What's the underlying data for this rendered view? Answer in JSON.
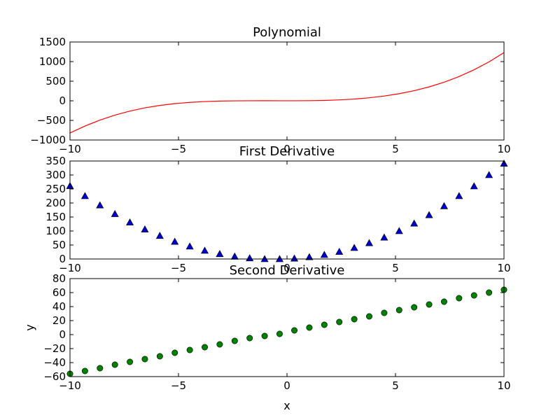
{
  "chart_data": [
    {
      "type": "line",
      "title": "Polynomial",
      "xlabel": "",
      "ylabel": "",
      "xlim": [
        -10,
        10
      ],
      "ylim": [
        -1000,
        1500
      ],
      "xticks": [
        -10,
        -5,
        0,
        5,
        10
      ],
      "yticks": [
        -1000,
        -500,
        0,
        500,
        1000,
        1500
      ],
      "xtick_labels": [
        "−10",
        "−5",
        "0",
        "5",
        "10"
      ],
      "ytick_labels": [
        "−1000",
        "−500",
        "0",
        "500",
        "1000",
        "1500"
      ],
      "grid": false,
      "series": [
        {
          "color": "#ff0000",
          "marker": "none",
          "x": [
            -10,
            -9.31,
            -8.62,
            -7.93,
            -7.24,
            -6.55,
            -5.86,
            -5.17,
            -4.48,
            -3.79,
            -3.1,
            -2.41,
            -1.72,
            -1.03,
            -0.34,
            0.34,
            1.03,
            1.72,
            2.41,
            3.1,
            3.79,
            4.48,
            5.17,
            5.86,
            6.55,
            7.24,
            7.93,
            8.62,
            9.31,
            10
          ],
          "y": [
            -820,
            -644,
            -492,
            -365,
            -262,
            -180,
            -118,
            -72,
            -40,
            -19,
            -7,
            -1,
            1,
            2,
            1,
            1,
            3,
            9,
            23,
            44,
            77,
            122,
            181,
            258,
            355,
            474,
            619,
            791,
            993,
            1230
          ]
        }
      ]
    },
    {
      "type": "scatter",
      "title": "First Derivative",
      "xlabel": "",
      "ylabel": "",
      "xlim": [
        -10,
        10
      ],
      "ylim": [
        0,
        350
      ],
      "xticks": [
        -10,
        -5,
        0,
        5,
        10
      ],
      "yticks": [
        0,
        50,
        100,
        150,
        200,
        250,
        300,
        350
      ],
      "xtick_labels": [
        "−10",
        "−5",
        "0",
        "5",
        "10"
      ],
      "ytick_labels": [
        "0",
        "50",
        "100",
        "150",
        "200",
        "250",
        "300",
        "350"
      ],
      "grid": false,
      "series": [
        {
          "color": "#0000cc",
          "marker": "triangle",
          "x": [
            -10,
            -9.31,
            -8.62,
            -7.93,
            -7.24,
            -6.55,
            -5.86,
            -5.17,
            -4.48,
            -3.79,
            -3.1,
            -2.41,
            -1.72,
            -1.03,
            -0.34,
            0.34,
            1.03,
            1.72,
            2.41,
            3.1,
            3.79,
            4.48,
            5.17,
            5.86,
            6.55,
            7.24,
            7.93,
            8.62,
            9.31,
            10
          ],
          "y": [
            261,
            225,
            192,
            161,
            131,
            106,
            83,
            62,
            45,
            30,
            18,
            9,
            3,
            0,
            0,
            2,
            7,
            15,
            26,
            40,
            57,
            77,
            100,
            127,
            157,
            189,
            225,
            260,
            300,
            341
          ]
        }
      ]
    },
    {
      "type": "scatter",
      "title": "Second Derivative",
      "xlabel": "x",
      "ylabel": "y",
      "xlim": [
        -10,
        10
      ],
      "ylim": [
        -60,
        80
      ],
      "xticks": [
        -10,
        -5,
        0,
        5,
        10
      ],
      "yticks": [
        -60,
        -40,
        -20,
        0,
        20,
        40,
        60,
        80
      ],
      "xtick_labels": [
        "−10",
        "−5",
        "0",
        "5",
        "10"
      ],
      "ytick_labels": [
        "−60",
        "−40",
        "−20",
        "0",
        "20",
        "40",
        "60",
        "80"
      ],
      "grid": false,
      "series": [
        {
          "color": "#008000",
          "marker": "circle",
          "x": [
            -10,
            -9.31,
            -8.62,
            -7.93,
            -7.24,
            -6.55,
            -5.86,
            -5.17,
            -4.48,
            -3.79,
            -3.1,
            -2.41,
            -1.72,
            -1.03,
            -0.34,
            0.34,
            1.03,
            1.72,
            2.41,
            3.1,
            3.79,
            4.48,
            5.17,
            5.86,
            6.55,
            7.24,
            7.93,
            8.62,
            9.31,
            10
          ],
          "y": [
            -56,
            -52,
            -48,
            -43,
            -39,
            -35,
            -31,
            -26,
            -22,
            -18,
            -14,
            -9,
            -5,
            -2,
            1,
            6,
            10,
            14,
            18,
            22,
            26,
            31,
            35,
            39,
            43,
            47,
            52,
            56,
            60,
            64
          ]
        }
      ]
    }
  ]
}
